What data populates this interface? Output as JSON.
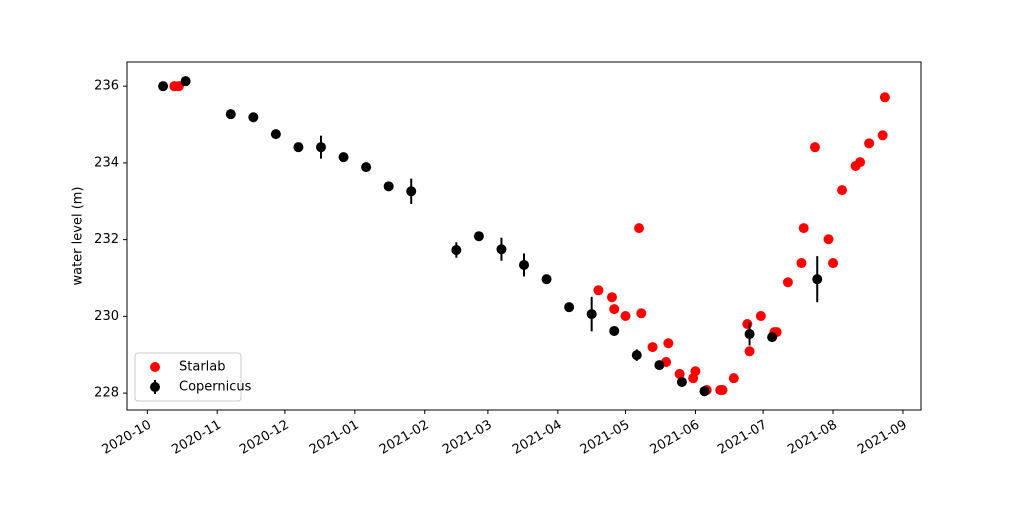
{
  "chart_data": {
    "type": "scatter",
    "ylabel": "water level (m)",
    "ylim": [
      227.56,
      236.63
    ],
    "yticks": [
      228,
      230,
      232,
      234,
      236
    ],
    "xlim": [
      "2020-09-22",
      "2021-09-09"
    ],
    "xticks": [
      {
        "value": "2020-10-01",
        "label": "2020-10"
      },
      {
        "value": "2020-11-01",
        "label": "2020-11"
      },
      {
        "value": "2020-12-01",
        "label": "2020-12"
      },
      {
        "value": "2021-01-01",
        "label": "2021-01"
      },
      {
        "value": "2021-02-01",
        "label": "2021-02"
      },
      {
        "value": "2021-03-01",
        "label": "2021-03"
      },
      {
        "value": "2021-04-01",
        "label": "2021-04"
      },
      {
        "value": "2021-05-01",
        "label": "2021-05"
      },
      {
        "value": "2021-06-01",
        "label": "2021-06"
      },
      {
        "value": "2021-07-01",
        "label": "2021-07"
      },
      {
        "value": "2021-08-01",
        "label": "2021-08"
      },
      {
        "value": "2021-09-01",
        "label": "2021-09"
      }
    ],
    "legend": "lower left",
    "series": [
      {
        "name": "Starlab",
        "color": "#ff0000",
        "x": [
          "2020-10-13",
          "2020-10-15",
          "2021-04-19",
          "2021-04-25",
          "2021-04-26",
          "2021-05-01",
          "2021-05-07",
          "2021-05-08",
          "2021-05-13",
          "2021-05-19",
          "2021-05-20",
          "2021-05-25",
          "2021-05-31",
          "2021-06-01",
          "2021-06-06",
          "2021-06-12",
          "2021-06-13",
          "2021-06-18",
          "2021-06-24",
          "2021-06-25",
          "2021-06-30",
          "2021-07-06",
          "2021-07-07",
          "2021-07-12",
          "2021-07-18",
          "2021-07-19",
          "2021-07-24",
          "2021-07-30",
          "2021-08-01",
          "2021-08-05",
          "2021-08-11",
          "2021-08-13",
          "2021-08-17",
          "2021-08-23",
          "2021-08-24"
        ],
        "values": [
          236.0,
          236.0,
          230.68,
          230.5,
          230.19,
          230.01,
          232.3,
          230.08,
          229.2,
          228.81,
          229.3,
          228.5,
          228.39,
          228.57,
          228.08,
          228.08,
          228.08,
          228.39,
          229.8,
          229.09,
          230.01,
          229.59,
          229.59,
          230.89,
          231.39,
          232.3,
          234.41,
          232.01,
          231.39,
          233.29,
          233.92,
          234.02,
          234.51,
          234.72,
          235.71
        ]
      },
      {
        "name": "Copernicus",
        "color": "#000000",
        "x": [
          "2020-10-08",
          "2020-10-18",
          "2020-11-07",
          "2020-11-17",
          "2020-11-27",
          "2020-12-07",
          "2020-12-17",
          "2020-12-27",
          "2021-01-06",
          "2021-01-16",
          "2021-01-26",
          "2021-02-15",
          "2021-02-25",
          "2021-03-07",
          "2021-03-17",
          "2021-03-27",
          "2021-04-06",
          "2021-04-16",
          "2021-04-26",
          "2021-05-06",
          "2021-05-16",
          "2021-05-26",
          "2021-06-05",
          "2021-06-25",
          "2021-07-05",
          "2021-07-25"
        ],
        "values": [
          236.0,
          236.13,
          235.27,
          235.19,
          234.75,
          234.41,
          234.41,
          234.15,
          233.89,
          233.39,
          233.26,
          231.73,
          232.09,
          231.75,
          231.34,
          230.97,
          230.24,
          230.06,
          229.62,
          228.99,
          228.73,
          228.29,
          228.05,
          229.54,
          229.46,
          230.97
        ],
        "errors": [
          0.05,
          0.05,
          0.05,
          0.05,
          0.05,
          0.05,
          0.3,
          0.05,
          0.05,
          0.05,
          0.33,
          0.2,
          0.12,
          0.3,
          0.3,
          0.1,
          0.05,
          0.45,
          0.05,
          0.15,
          0.05,
          0.05,
          0.05,
          0.3,
          0.05,
          0.6
        ]
      }
    ]
  }
}
